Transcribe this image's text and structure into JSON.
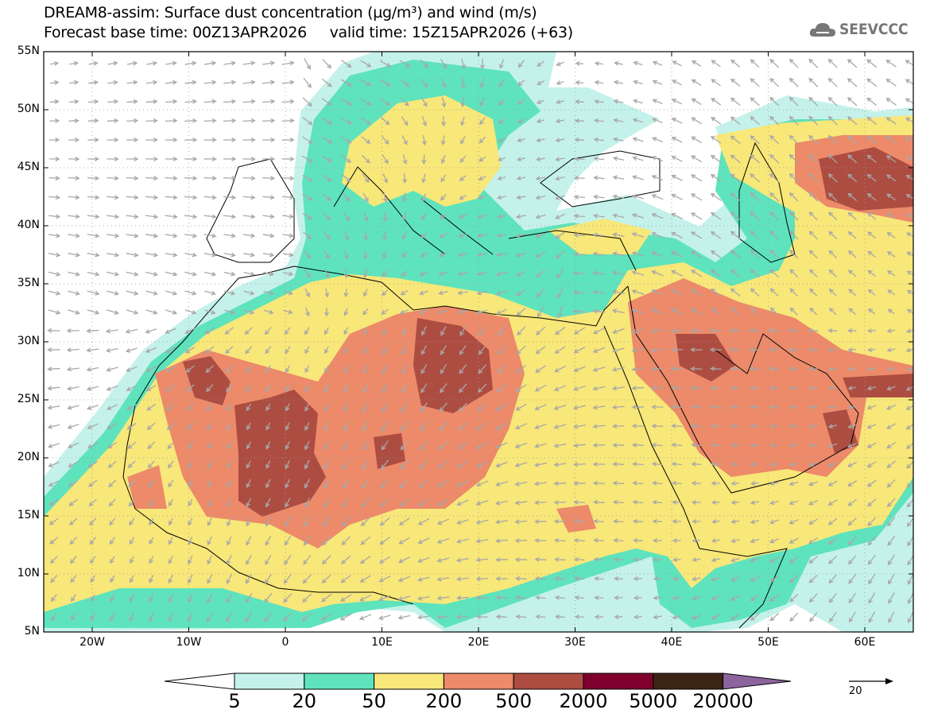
{
  "title": {
    "line1": "DREAM8-assim: Surface dust concentration (µg/m³) and wind (m/s)",
    "line2": "Forecast base time: 00Z13APR2026     valid time: 15Z15APR2026 (+63)"
  },
  "logo": {
    "text": "SEEVCCC",
    "icon": "cloud-icon"
  },
  "axes": {
    "lat_labels": [
      "55N",
      "50N",
      "45N",
      "40N",
      "35N",
      "30N",
      "25N",
      "20N",
      "15N",
      "10N",
      "5N"
    ],
    "lon_labels": [
      "20W",
      "10W",
      "0",
      "10E",
      "20E",
      "30E",
      "40E",
      "50E",
      "60E"
    ]
  },
  "colorbar": {
    "colors": [
      "#ffffff",
      "#c4f2ea",
      "#5ee3bd",
      "#f8e779",
      "#ec8a6a",
      "#ad4d42",
      "#80002d",
      "#3b2414",
      "#8b649d"
    ],
    "labels": [
      "5",
      "20",
      "50",
      "200",
      "500",
      "2000",
      "5000",
      "20000"
    ]
  },
  "wind_reference": {
    "value": "20"
  }
}
